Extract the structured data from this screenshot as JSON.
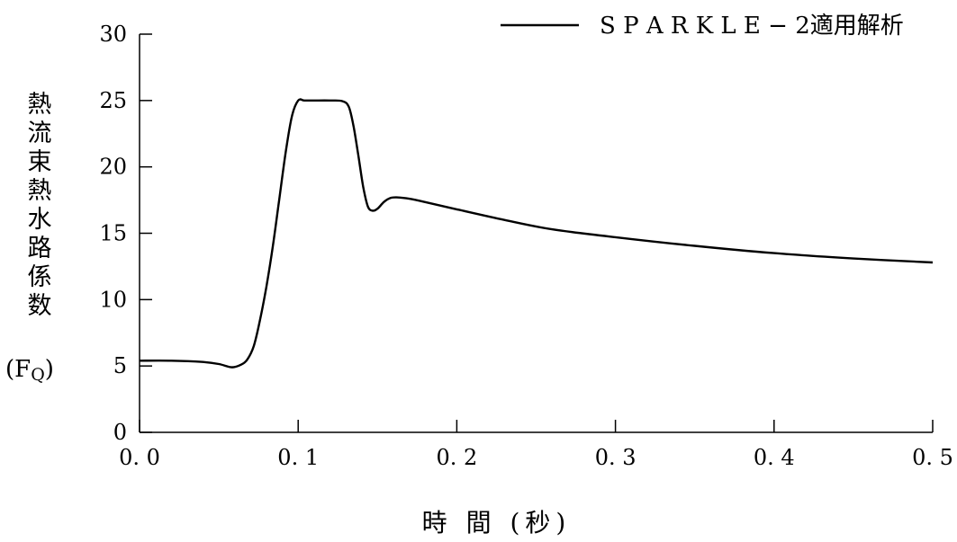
{
  "chart_data": {
    "type": "line",
    "title": "",
    "ylabel_chars": [
      "熱",
      "流",
      "束",
      "熱",
      "水",
      "路",
      "係",
      "数"
    ],
    "ylabel_symbol": "(F",
    "ylabel_sub": "Q",
    "ylabel_close": ")",
    "xlabel": "時 間 (秒)",
    "xlim": [
      0.0,
      0.5
    ],
    "ylim": [
      0,
      30
    ],
    "xticks": [
      0.0,
      0.1,
      0.2,
      0.3,
      0.4,
      0.5
    ],
    "xtick_labels": [
      "0. 0",
      "0. 1",
      "0. 2",
      "0. 3",
      "0. 4",
      "0. 5"
    ],
    "yticks": [
      0,
      5,
      10,
      15,
      20,
      25,
      30
    ],
    "ytick_labels": [
      "0",
      "5",
      "10",
      "15",
      "20",
      "25",
      "30"
    ],
    "grid": false,
    "legend_position": "top-right",
    "series": [
      {
        "name": "S P A R K L E − 2適用解析",
        "color": "#000000",
        "x": [
          0.0,
          0.02,
          0.04,
          0.05,
          0.058,
          0.064,
          0.068,
          0.072,
          0.076,
          0.08,
          0.084,
          0.088,
          0.092,
          0.096,
          0.1,
          0.104,
          0.11,
          0.12,
          0.128,
          0.132,
          0.135,
          0.138,
          0.141,
          0.144,
          0.147,
          0.15,
          0.154,
          0.158,
          0.162,
          0.17,
          0.18,
          0.2,
          0.23,
          0.26,
          0.3,
          0.35,
          0.4,
          0.45,
          0.5
        ],
        "y": [
          5.4,
          5.4,
          5.3,
          5.15,
          4.9,
          5.1,
          5.5,
          6.5,
          8.5,
          11.0,
          14.0,
          17.5,
          21.0,
          23.8,
          25.0,
          25.0,
          25.0,
          25.0,
          24.95,
          24.5,
          23.0,
          20.8,
          18.5,
          17.0,
          16.7,
          16.85,
          17.35,
          17.65,
          17.7,
          17.6,
          17.35,
          16.8,
          16.0,
          15.3,
          14.7,
          14.05,
          13.5,
          13.1,
          12.8
        ]
      }
    ]
  }
}
